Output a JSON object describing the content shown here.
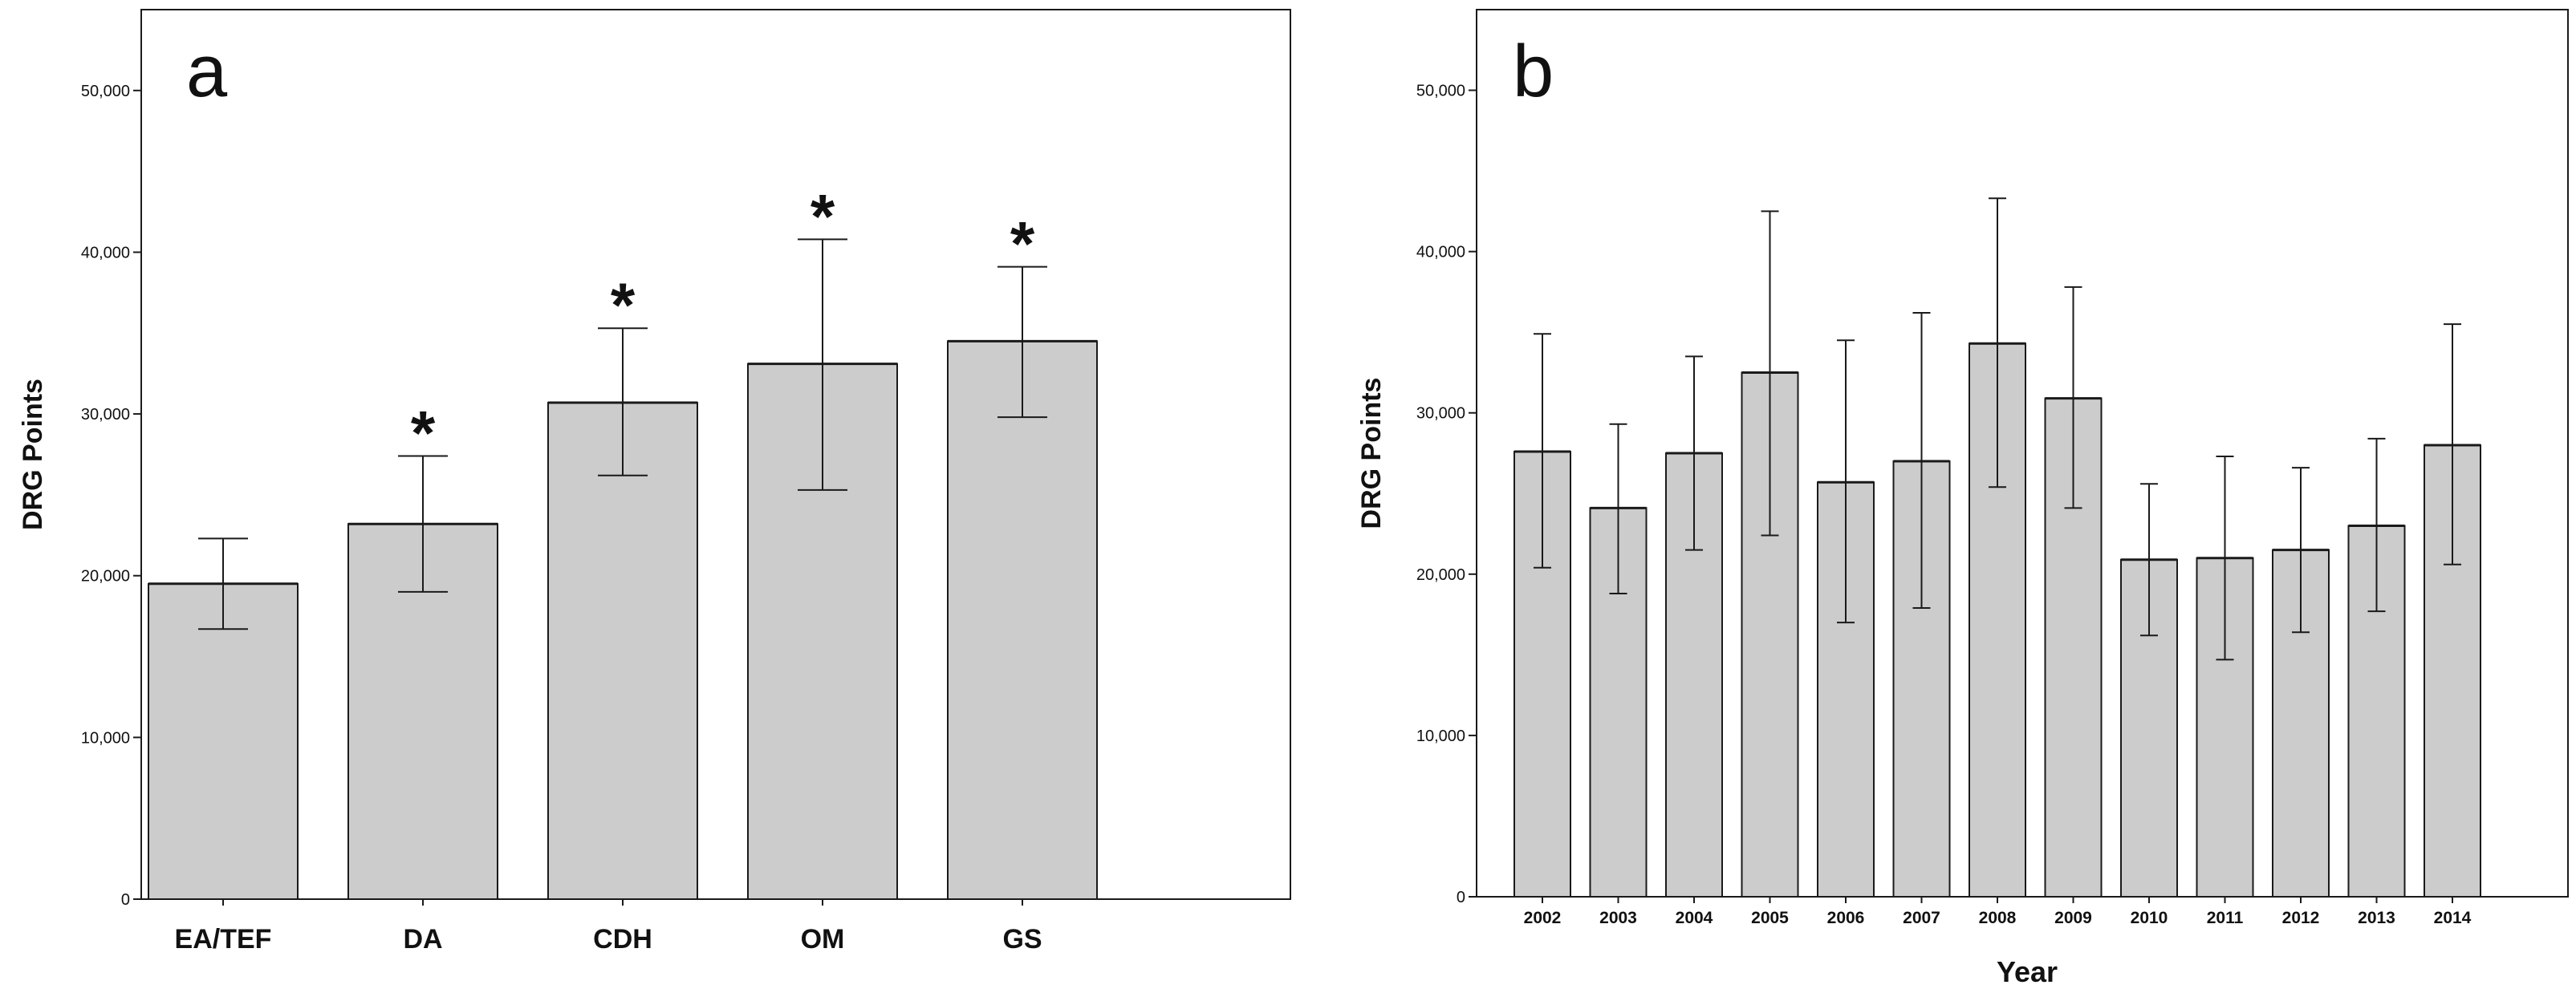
{
  "chart_data": [
    {
      "type": "bar",
      "panel_label": "a",
      "categories": [
        "EA/TEF",
        "DA",
        "CDH",
        "OM",
        "GS"
      ],
      "values": [
        19500,
        23200,
        30700,
        33100,
        34500
      ],
      "error_low": [
        16700,
        19000,
        26200,
        25300,
        29800
      ],
      "error_high": [
        22300,
        27400,
        35300,
        40800,
        39100
      ],
      "significance": [
        "",
        "*",
        "*",
        "*",
        "*"
      ],
      "ylabel": "DRG Points",
      "xlabel": "",
      "ylim": [
        0,
        55000
      ],
      "yticks": [
        0,
        10000,
        20000,
        30000,
        40000,
        50000
      ],
      "ytick_labels": [
        "0",
        "10,000",
        "20,000",
        "30,000",
        "40,000",
        "50,000"
      ],
      "grid": false
    },
    {
      "type": "bar",
      "panel_label": "b",
      "categories": [
        "2002",
        "2003",
        "2004",
        "2005",
        "2006",
        "2007",
        "2008",
        "2009",
        "2010",
        "2011",
        "2012",
        "2013",
        "2014"
      ],
      "values": [
        27600,
        24100,
        27500,
        32500,
        25700,
        27000,
        34300,
        30900,
        20900,
        21000,
        21500,
        23000,
        28000
      ],
      "error_low": [
        20400,
        18800,
        21500,
        22400,
        17000,
        17900,
        25400,
        24100,
        16200,
        14700,
        16400,
        17700,
        20600
      ],
      "error_high": [
        34900,
        29300,
        33500,
        42500,
        34500,
        36200,
        43300,
        37800,
        25600,
        27300,
        26600,
        28400,
        35500
      ],
      "significance": [
        "",
        "",
        "",
        "",
        "",
        "",
        "",
        "",
        "",
        "",
        "",
        "",
        ""
      ],
      "ylabel": "DRG Points",
      "xlabel": "Year",
      "ylim": [
        0,
        55000
      ],
      "yticks": [
        0,
        10000,
        20000,
        30000,
        40000,
        50000
      ],
      "ytick_labels": [
        "0",
        "10,000",
        "20,000",
        "30,000",
        "40,000",
        "50,000"
      ],
      "grid": false
    }
  ],
  "colors": {
    "bar_fill": "#cccccc",
    "bar_stroke": "#1a1a1a",
    "axis": "#1a1a1a",
    "background": "#ffffff"
  }
}
